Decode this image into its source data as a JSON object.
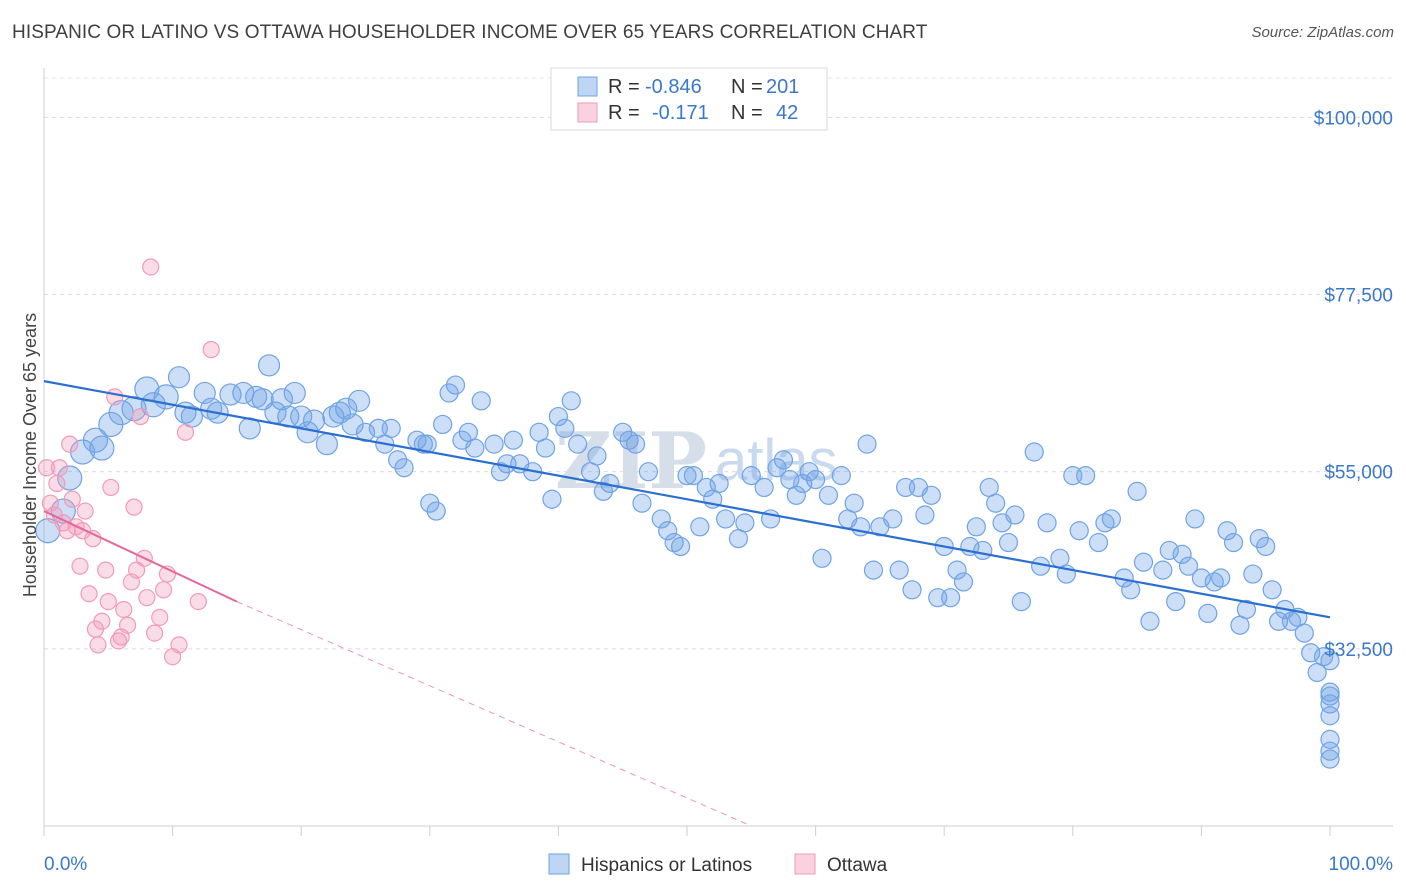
{
  "title": "HISPANIC OR LATINO VS OTTAWA HOUSEHOLDER INCOME OVER 65 YEARS CORRELATION CHART",
  "source": "Source: ZipAtlas.com",
  "watermark": {
    "zip": "ZIP",
    "atlas": "atlas"
  },
  "legend_top": {
    "r_label": "R =",
    "n_label": "N =",
    "rows": [
      {
        "r": "-0.846",
        "n": "201",
        "color": "#6fa3e6"
      },
      {
        "r": "-0.171",
        "n": "42",
        "color": "#f29ab8"
      }
    ]
  },
  "chart_data": {
    "type": "scatter",
    "title": "HISPANIC OR LATINO VS OTTAWA HOUSEHOLDER INCOME OVER 65 YEARS CORRELATION CHART",
    "xlabel": "",
    "ylabel": "Householder Income Over 65 years",
    "xlim": [
      0,
      100
    ],
    "ylim": [
      10000,
      105000
    ],
    "x_tick_labels": [
      "0.0%",
      "100.0%"
    ],
    "y_ticks": [
      32500,
      55000,
      77500,
      100000
    ],
    "y_tick_labels": [
      "$32,500",
      "$55,000",
      "$77,500",
      "$100,000"
    ],
    "grid": true,
    "legend_position": "bottom-center",
    "series": [
      {
        "name": "Hispanics or Latinos",
        "color": "#6fa3e6",
        "line_color": "#2b6fd1",
        "trend": {
          "x": [
            0,
            100
          ],
          "y": [
            66500,
            36500
          ]
        },
        "points": [
          [
            0.3,
            47.5
          ],
          [
            1.5,
            50
          ],
          [
            2,
            54.2
          ],
          [
            3,
            57.5
          ],
          [
            4,
            59
          ],
          [
            4.5,
            58
          ],
          [
            5.2,
            61
          ],
          [
            6,
            62.5
          ],
          [
            7,
            63
          ],
          [
            8,
            65.5
          ],
          [
            8.5,
            63.5
          ],
          [
            9.5,
            64.5
          ],
          [
            10.5,
            67
          ],
          [
            11,
            62.5
          ],
          [
            11.5,
            62
          ],
          [
            12.5,
            65
          ],
          [
            13,
            63
          ],
          [
            13.5,
            62.5
          ],
          [
            14.5,
            64.8
          ],
          [
            15.5,
            65
          ],
          [
            16,
            60.5
          ],
          [
            16.5,
            64.5
          ],
          [
            17,
            64.2
          ],
          [
            17.5,
            68.5
          ],
          [
            18,
            62.5
          ],
          [
            18.5,
            64.2
          ],
          [
            19,
            62
          ],
          [
            19.5,
            65
          ],
          [
            20,
            62
          ],
          [
            20.5,
            60
          ],
          [
            21,
            61.5
          ],
          [
            22,
            58.5
          ],
          [
            22.5,
            62
          ],
          [
            23,
            62.5
          ],
          [
            23.5,
            63
          ],
          [
            24,
            61
          ],
          [
            24.5,
            64
          ],
          [
            25,
            60
          ],
          [
            26,
            60.5
          ],
          [
            26.5,
            58.5
          ],
          [
            27,
            60.5
          ],
          [
            27.5,
            56.5
          ],
          [
            28,
            55.5
          ],
          [
            29,
            59
          ],
          [
            29.5,
            58.5
          ],
          [
            29.8,
            58.5
          ],
          [
            30,
            51
          ],
          [
            30.5,
            50
          ],
          [
            31,
            61
          ],
          [
            31.5,
            65
          ],
          [
            32,
            66
          ],
          [
            32.5,
            59
          ],
          [
            33,
            60
          ],
          [
            33.5,
            58
          ],
          [
            34,
            64
          ],
          [
            35,
            58.5
          ],
          [
            35.5,
            55
          ],
          [
            36,
            56
          ],
          [
            36.5,
            59
          ],
          [
            37,
            56
          ],
          [
            38,
            55
          ],
          [
            38.5,
            60
          ],
          [
            39,
            58
          ],
          [
            39.5,
            51.5
          ],
          [
            40,
            62
          ],
          [
            40.5,
            60.5
          ],
          [
            41,
            64
          ],
          [
            41.5,
            58.5
          ],
          [
            42.5,
            55
          ],
          [
            43,
            57
          ],
          [
            43.5,
            52.5
          ],
          [
            44,
            53.5
          ],
          [
            45,
            60
          ],
          [
            45.5,
            59
          ],
          [
            46,
            58.5
          ],
          [
            46.5,
            51
          ],
          [
            47,
            55
          ],
          [
            48,
            49
          ],
          [
            48.5,
            47.5
          ],
          [
            49,
            46
          ],
          [
            49.5,
            45.5
          ],
          [
            50,
            54.5
          ],
          [
            50.5,
            54.5
          ],
          [
            51,
            48
          ],
          [
            51.5,
            53
          ],
          [
            52,
            51.5
          ],
          [
            52.5,
            53.5
          ],
          [
            53,
            49
          ],
          [
            54,
            46.5
          ],
          [
            54.5,
            48.5
          ],
          [
            55,
            54.5
          ],
          [
            56,
            53
          ],
          [
            56.5,
            49
          ],
          [
            57,
            55.5
          ],
          [
            57.5,
            56.5
          ],
          [
            58,
            54
          ],
          [
            58.5,
            52
          ],
          [
            59,
            53.5
          ],
          [
            59.5,
            55
          ],
          [
            60,
            54
          ],
          [
            60.5,
            44
          ],
          [
            61,
            52
          ],
          [
            62,
            54.5
          ],
          [
            62.5,
            49
          ],
          [
            63,
            51
          ],
          [
            63.5,
            48
          ],
          [
            64,
            58.5
          ],
          [
            64.5,
            42.5
          ],
          [
            65,
            48
          ],
          [
            66,
            49
          ],
          [
            66.5,
            42.5
          ],
          [
            67,
            53
          ],
          [
            67.5,
            40
          ],
          [
            68,
            53
          ],
          [
            68.5,
            49.5
          ],
          [
            69,
            52
          ],
          [
            69.5,
            39
          ],
          [
            70,
            45.5
          ],
          [
            70.5,
            39
          ],
          [
            71,
            42.5
          ],
          [
            71.5,
            41
          ],
          [
            72,
            45.5
          ],
          [
            72.5,
            48
          ],
          [
            73,
            45
          ],
          [
            73.5,
            53
          ],
          [
            74,
            51
          ],
          [
            74.5,
            48.5
          ],
          [
            75,
            46
          ],
          [
            75.5,
            49.5
          ],
          [
            76,
            38.5
          ],
          [
            77,
            57.5
          ],
          [
            77.5,
            43
          ],
          [
            78,
            48.5
          ],
          [
            79,
            44
          ],
          [
            79.5,
            42
          ],
          [
            80,
            54.5
          ],
          [
            80.5,
            47.5
          ],
          [
            81,
            54.5
          ],
          [
            82,
            46
          ],
          [
            82.5,
            48.5
          ],
          [
            83,
            49
          ],
          [
            84,
            41.5
          ],
          [
            84.5,
            40
          ],
          [
            85,
            52.5
          ],
          [
            85.5,
            43.5
          ],
          [
            86,
            36
          ],
          [
            87,
            42.5
          ],
          [
            87.5,
            45
          ],
          [
            88,
            38.5
          ],
          [
            88.5,
            44.5
          ],
          [
            89,
            43
          ],
          [
            89.5,
            49
          ],
          [
            90,
            41.5
          ],
          [
            90.5,
            37
          ],
          [
            91,
            41
          ],
          [
            91.5,
            41.5
          ],
          [
            92,
            47.5
          ],
          [
            92.5,
            46
          ],
          [
            93,
            35.5
          ],
          [
            93.5,
            37.5
          ],
          [
            94,
            42
          ],
          [
            94.5,
            46.5
          ],
          [
            95,
            45.5
          ],
          [
            95.5,
            40
          ],
          [
            96,
            36
          ],
          [
            96.5,
            37.5
          ],
          [
            97,
            36
          ],
          [
            97.5,
            36.5
          ],
          [
            98,
            34.5
          ],
          [
            98.5,
            32
          ],
          [
            99,
            29.5
          ],
          [
            99.5,
            31.5
          ],
          [
            100,
            27
          ],
          [
            100.5,
            31
          ],
          [
            101,
            25.5
          ],
          [
            101.5,
            26.5
          ],
          [
            102,
            24
          ],
          [
            102.5,
            21
          ],
          [
            103,
            19.5
          ],
          [
            103.3,
            18.5
          ]
        ]
      },
      {
        "name": "Ottawa",
        "color": "#f29ab8",
        "line_color": "#e4689a",
        "trend": {
          "x": [
            0,
            15
          ],
          "y": [
            50000,
            38500
          ]
        },
        "trend_dashed": {
          "x": [
            15,
            55
          ],
          "y": [
            38500,
            10000
          ]
        },
        "points": [
          [
            0.2,
            55.5
          ],
          [
            0.5,
            51
          ],
          [
            0.8,
            49.5
          ],
          [
            1,
            53.5
          ],
          [
            1.2,
            55.5
          ],
          [
            1.5,
            48.5
          ],
          [
            1.8,
            47.5
          ],
          [
            2,
            58.5
          ],
          [
            2.2,
            51.5
          ],
          [
            2.5,
            48
          ],
          [
            2.8,
            43
          ],
          [
            3,
            47.5
          ],
          [
            3.2,
            50
          ],
          [
            3.5,
            39.5
          ],
          [
            3.8,
            46.5
          ],
          [
            4,
            35
          ],
          [
            4.2,
            33
          ],
          [
            4.5,
            36
          ],
          [
            4.8,
            42.5
          ],
          [
            5,
            38.5
          ],
          [
            5.2,
            53
          ],
          [
            5.5,
            64.5
          ],
          [
            5.8,
            33.5
          ],
          [
            6,
            34
          ],
          [
            6.2,
            37.5
          ],
          [
            6.5,
            35.5
          ],
          [
            6.8,
            41
          ],
          [
            7,
            50.5
          ],
          [
            7.2,
            42.5
          ],
          [
            7.5,
            62
          ],
          [
            7.8,
            44
          ],
          [
            8,
            39
          ],
          [
            8.3,
            81
          ],
          [
            8.6,
            34.5
          ],
          [
            9,
            36.5
          ],
          [
            9.3,
            40
          ],
          [
            9.6,
            42
          ],
          [
            10,
            31.5
          ],
          [
            10.5,
            33
          ],
          [
            11,
            60
          ],
          [
            12,
            38.5
          ],
          [
            13,
            70.5
          ]
        ]
      }
    ]
  },
  "legend_bottom": [
    {
      "label": "Hispanics or Latinos",
      "color": "#6fa3e6"
    },
    {
      "label": "Ottawa",
      "color": "#f29ab8"
    }
  ]
}
